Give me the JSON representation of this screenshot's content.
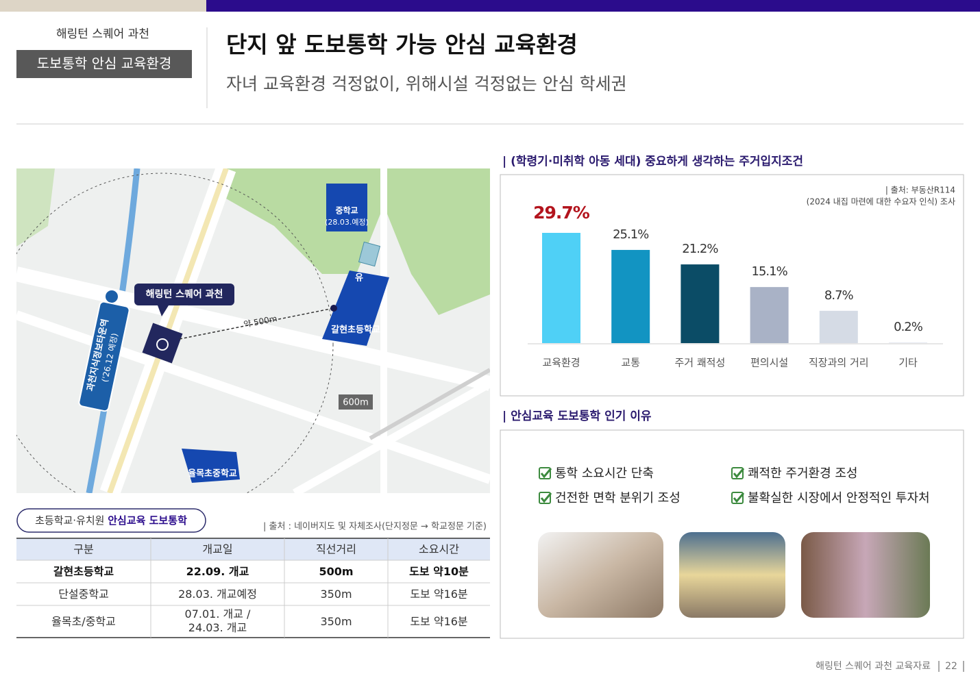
{
  "header": {
    "project": "해링턴 스퀘어 과천",
    "badge": "도보통학 안심 교육환경",
    "title": "단지 앞 도보통학 가능 안심 교육환경",
    "subtitle": "자녀 교육환경 걱정없이, 위해시설 걱정없는 안심 학세권"
  },
  "map": {
    "middle_school": "중학교",
    "middle_school_note": "(28.03.예정)",
    "kindergarten": "유",
    "site": "해링턴 스퀘어 과천",
    "distance": "약 500m",
    "elementary": "갈현초등학교",
    "radius": "600m",
    "yulmok": "율목초중학교",
    "station": "과천지식정보타운역",
    "station_note": "('26.12 예정)"
  },
  "school_table": {
    "tag_prefix": "초등학교·유치원 ",
    "tag_highlight": "안심교육 도보통학",
    "source": "| 출처 : 네이버지도 및 자체조사(단지정문 → 학교정문 기준)",
    "columns": [
      "구분",
      "개교일",
      "직선거리",
      "소요시간"
    ],
    "rows": [
      [
        "갈현초등학교",
        "22.09. 개교",
        "500m",
        "도보 약10분"
      ],
      [
        "단설중학교",
        "28.03. 개교예정",
        "350m",
        "도보 약16분"
      ],
      [
        "율목초/중학교",
        [
          "07.01. 개교 /",
          "24.03. 개교"
        ],
        "350m",
        "도보 약16분"
      ]
    ]
  },
  "chart_data": {
    "type": "bar",
    "title": "| (학령기·미취학 아동 세대) 중요하게 생각하는 주거입지조건",
    "source": "| 출처: 부동산R114",
    "source_note": "(2024 내집 마련에 대한 수요자 인식) 조사",
    "categories": [
      "교육환경",
      "교통",
      "주거 쾌적성",
      "편의시설",
      "직장과의 거리",
      "기타"
    ],
    "values": [
      29.7,
      25.1,
      21.2,
      15.1,
      8.7,
      0.2
    ],
    "value_labels": [
      "29.7%",
      "25.1%",
      "21.2%",
      "15.1%",
      "8.7%",
      "0.2%"
    ],
    "colors": [
      "#4fd0f6",
      "#1294c2",
      "#0b4c66",
      "#a9b2c6",
      "#d5dbe5",
      "#e6eaf1"
    ],
    "highlight_index": 0,
    "highlight_color": "#b3141d"
  },
  "reasons": {
    "title": "| 안심교육 도보통학 인기 이유",
    "items": [
      "통학 소요시간 단축",
      "쾌적한 주거환경 조성",
      "건전한 면학 분위기 조성",
      "불확실한 시장에서 안정적인 투자처"
    ]
  },
  "footer": {
    "text": "해링턴 스퀘어 과천 교육자료",
    "page": "22"
  }
}
